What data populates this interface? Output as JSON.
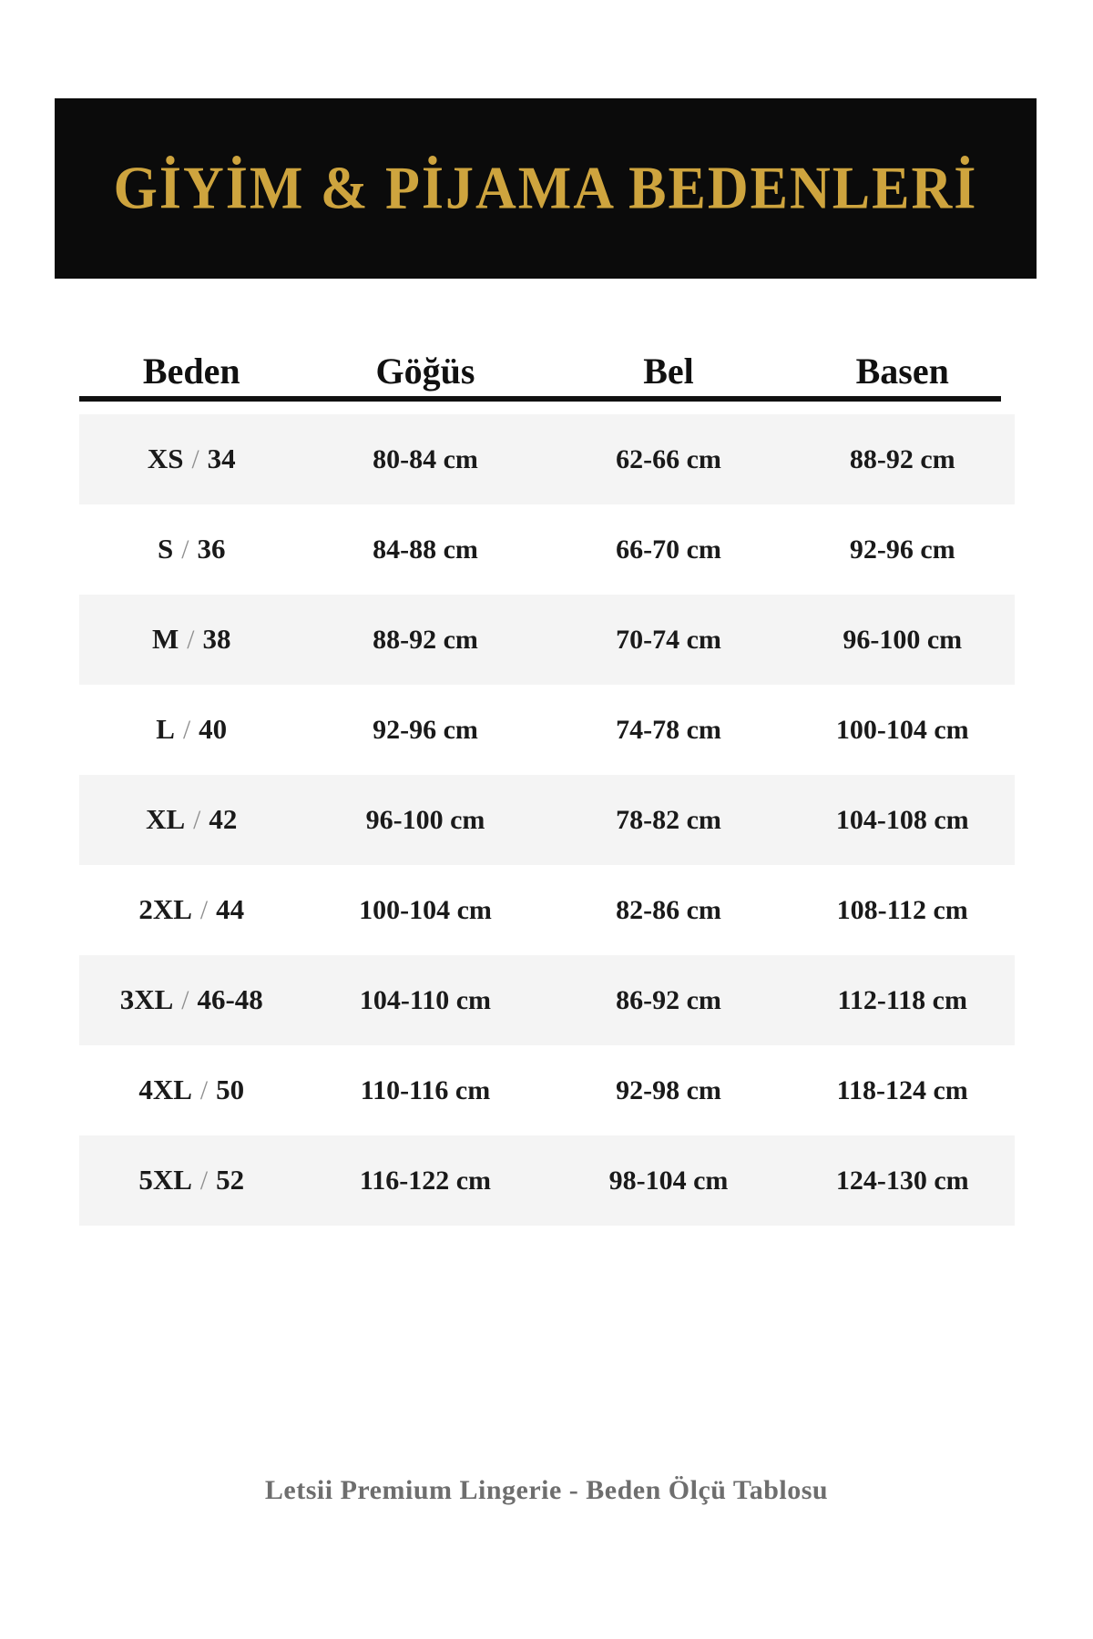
{
  "banner": {
    "title": "GİYİM & PİJAMA BEDENLERİ"
  },
  "table": {
    "sep": "/",
    "headers": [
      "Beden",
      "Göğüs",
      "Bel",
      "Basen"
    ],
    "rows": [
      {
        "size": "XS",
        "alt": "34",
        "chest": "80-84 cm",
        "waist": "62-66 cm",
        "hips": "88-92 cm"
      },
      {
        "size": "S",
        "alt": "36",
        "chest": "84-88 cm",
        "waist": "66-70 cm",
        "hips": "92-96 cm"
      },
      {
        "size": "M",
        "alt": "38",
        "chest": "88-92 cm",
        "waist": "70-74 cm",
        "hips": "96-100 cm"
      },
      {
        "size": "L",
        "alt": "40",
        "chest": "92-96 cm",
        "waist": "74-78 cm",
        "hips": "100-104 cm"
      },
      {
        "size": "XL",
        "alt": "42",
        "chest": "96-100 cm",
        "waist": "78-82 cm",
        "hips": "104-108 cm"
      },
      {
        "size": "2XL",
        "alt": "44",
        "chest": "100-104 cm",
        "waist": "82-86 cm",
        "hips": "108-112 cm"
      },
      {
        "size": "3XL",
        "alt": "46-48",
        "chest": "104-110 cm",
        "waist": "86-92 cm",
        "hips": "112-118 cm"
      },
      {
        "size": "4XL",
        "alt": "50",
        "chest": "110-116 cm",
        "waist": "92-98 cm",
        "hips": "118-124 cm"
      },
      {
        "size": "5XL",
        "alt": "52",
        "chest": "116-122 cm",
        "waist": "98-104 cm",
        "hips": "124-130 cm"
      }
    ]
  },
  "footer": {
    "text": "Letsii Premium Lingerie - Beden Ölçü Tablosu"
  },
  "colors": {
    "accent_gold": "#cea43e",
    "banner_bg": "#0b0b0b",
    "row_alt": "#f4f4f4",
    "sep_gray": "#8f8f8f",
    "footer_gray": "#6e6e6e",
    "page_bg": "#ffffff"
  }
}
